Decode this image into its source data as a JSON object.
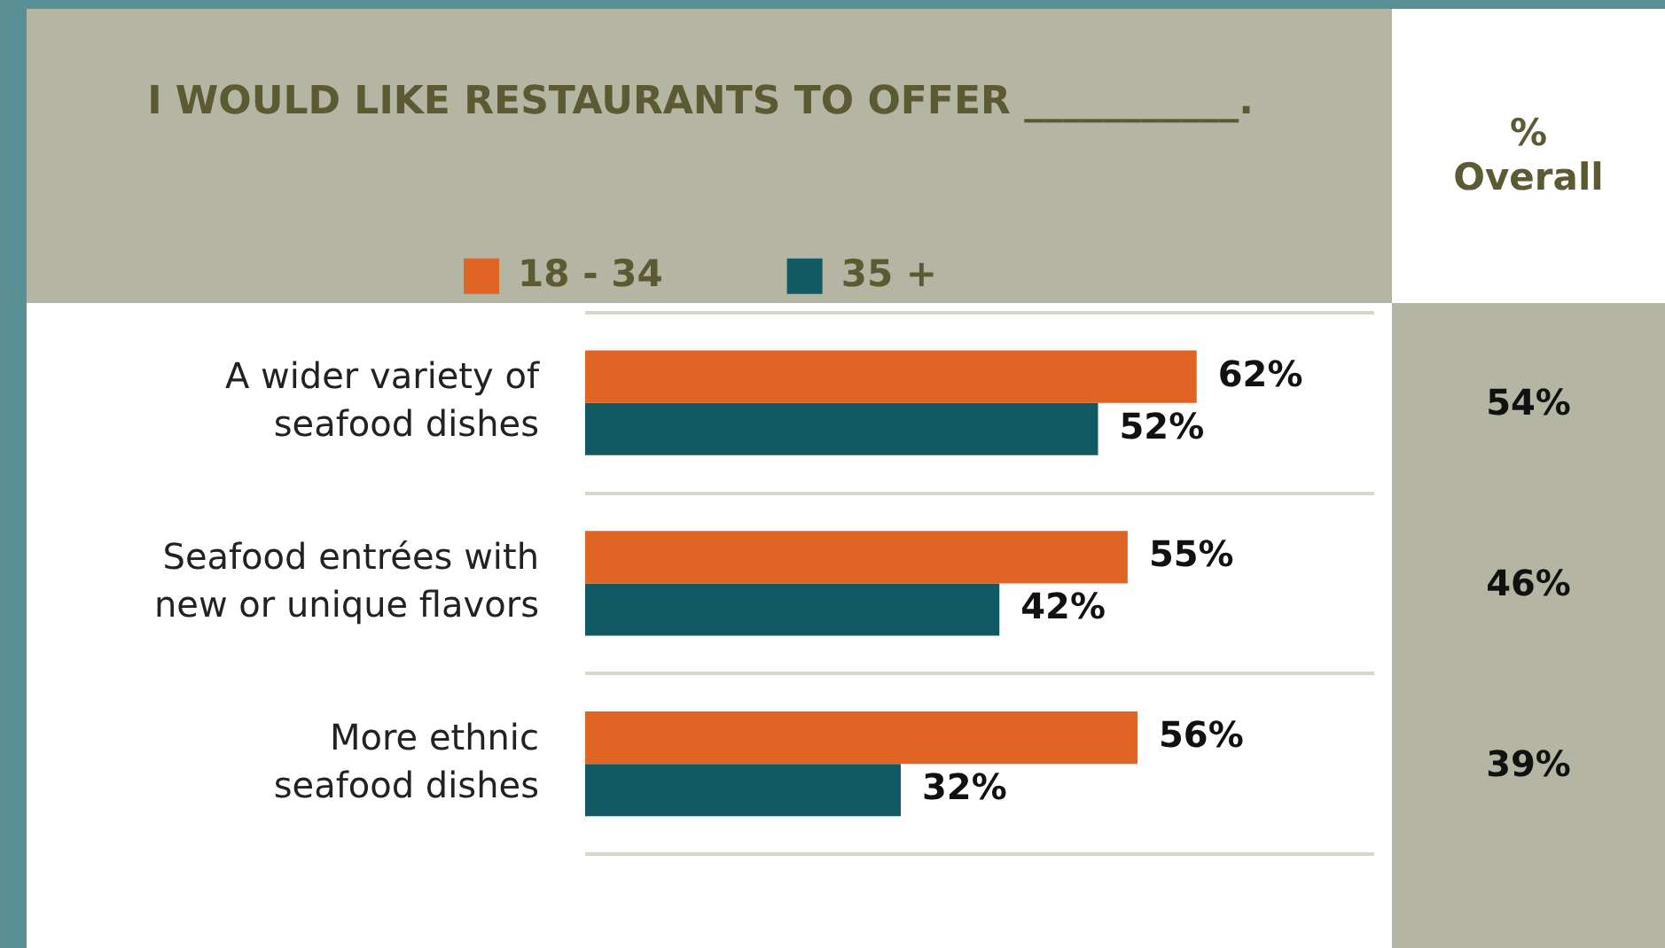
{
  "chart_data": {
    "type": "bar",
    "orientation": "horizontal",
    "title": "I WOULD LIKE RESTAURANTS TO OFFER ___________.",
    "categories": [
      "A wider variety of\nseafood dishes",
      "Seafood entrées with\nnew or unique flavors",
      "More ethnic\nseafood dishes"
    ],
    "series": [
      {
        "name": "18 - 34",
        "color": "#e06424",
        "values": [
          62,
          55,
          56
        ],
        "value_labels": [
          "62%",
          "55%",
          "56%"
        ]
      },
      {
        "name": "35 +",
        "color": "#115a63",
        "values": [
          52,
          42,
          32
        ],
        "value_labels": [
          "52%",
          "42%",
          "32%"
        ]
      }
    ],
    "xlim": [
      0,
      80
    ],
    "tick_labels": "y",
    "grid": "y",
    "legend": "top",
    "annotations": [
      "%\nOverall",
      "54%",
      "46%",
      "39%"
    ]
  }
}
